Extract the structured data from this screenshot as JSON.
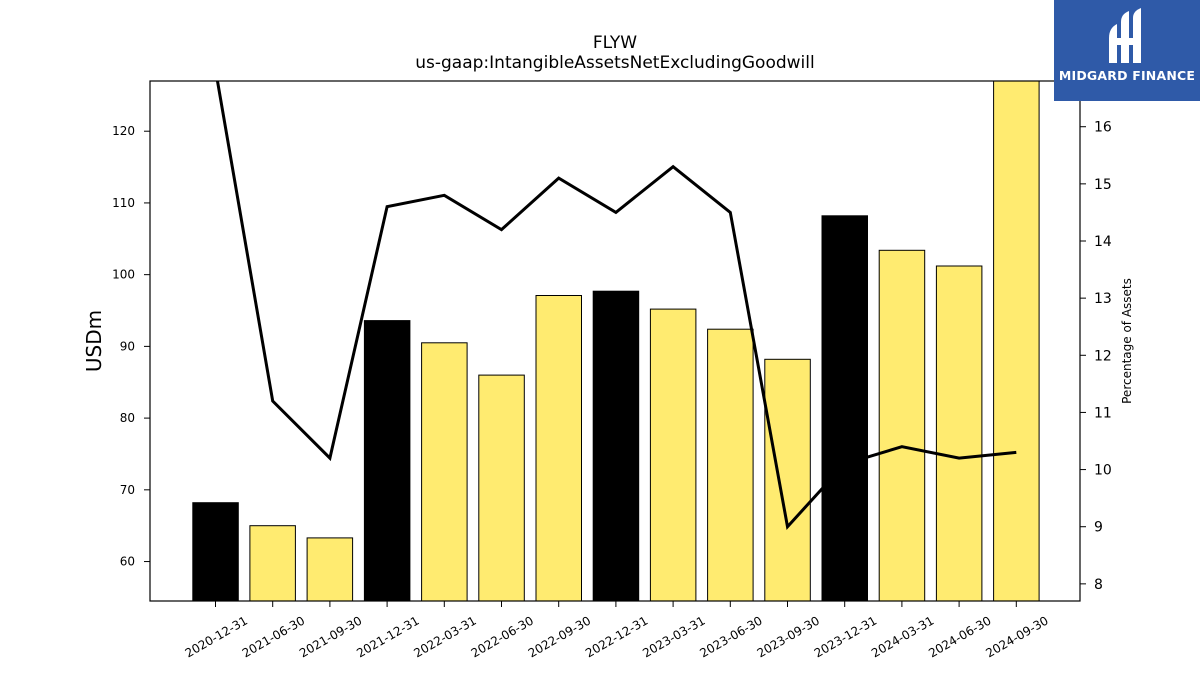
{
  "chart_data": {
    "type": "bar",
    "title": "FLYW",
    "subtitle": "us-gaap:IntangibleAssetsNetExcludingGoodwill",
    "ylabel": "USDm",
    "ylabel_right": "Percentage of Assets",
    "categories": [
      "2020-12-31",
      "2021-06-30",
      "2021-09-30",
      "2021-12-31",
      "2022-03-31",
      "2022-06-30",
      "2022-09-30",
      "2022-12-31",
      "2023-03-31",
      "2023-06-30",
      "2023-09-30",
      "2023-12-31",
      "2024-03-31",
      "2024-06-30",
      "2024-09-30"
    ],
    "series": [
      {
        "values": [
          68.2,
          65.0,
          63.3,
          93.6,
          90.5,
          86.0,
          97.1,
          97.7,
          95.2,
          92.4,
          88.2,
          108.2,
          103.4,
          101.2,
          127.0
        ],
        "colors": [
          "#000000",
          "#ffeb70",
          "#ffeb70",
          "#000000",
          "#ffeb70",
          "#ffeb70",
          "#ffeb70",
          "#000000",
          "#ffeb70",
          "#ffeb70",
          "#ffeb70",
          "#000000",
          "#ffeb70",
          "#ffeb70",
          "#ffeb70"
        ]
      },
      {
        "axis": "right",
        "type": "line",
        "values": [
          17.0,
          11.2,
          10.2,
          14.6,
          14.8,
          14.2,
          15.1,
          14.5,
          15.3,
          14.5,
          9.0,
          10.1,
          10.4,
          10.2,
          10.3
        ]
      }
    ],
    "ylim": [
      54.5,
      127
    ],
    "yticks": [
      60,
      70,
      80,
      90,
      100,
      110,
      120
    ],
    "ylim_right": [
      7.7,
      16.8
    ],
    "yticks_right": [
      8,
      9,
      10,
      11,
      12,
      13,
      14,
      15,
      16
    ],
    "grid": false,
    "legend": "none"
  },
  "logo": {
    "text": "MIDGARD FINANCE",
    "color": "#2f5aa8"
  }
}
